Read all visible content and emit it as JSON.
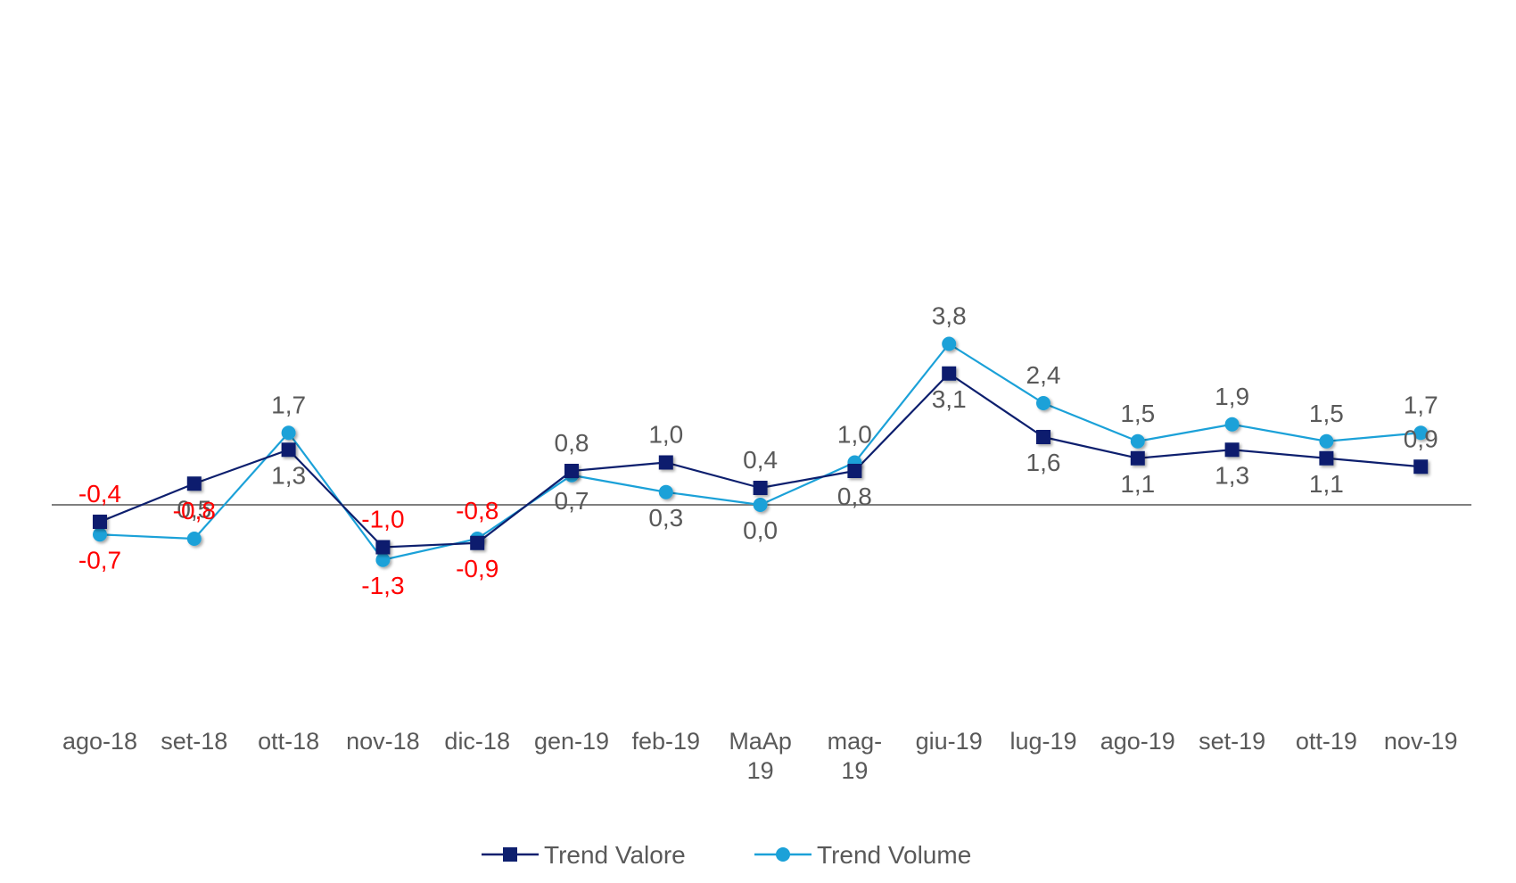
{
  "chart_data": {
    "type": "line",
    "title": "",
    "xlabel": "",
    "ylabel": "",
    "ylim": [
      -2.5,
      4.5
    ],
    "grid": false,
    "zero_line": true,
    "legend_position": "bottom",
    "categories": [
      [
        "ago-18"
      ],
      [
        "set-18"
      ],
      [
        "ott-18"
      ],
      [
        "nov-18"
      ],
      [
        "dic-18"
      ],
      [
        "gen-19"
      ],
      [
        "feb-19"
      ],
      [
        "MaAp",
        "19"
      ],
      [
        "mag-",
        "19"
      ],
      [
        "giu-19"
      ],
      [
        "lug-19"
      ],
      [
        "ago-19"
      ],
      [
        "set-19"
      ],
      [
        "ott-19"
      ],
      [
        "nov-19"
      ]
    ],
    "series": [
      {
        "name": "Trend Valore",
        "color": "#0d1f6e",
        "marker": "square",
        "values": [
          -0.4,
          0.5,
          1.3,
          -1.0,
          -0.9,
          0.8,
          1.0,
          0.4,
          0.8,
          3.1,
          1.6,
          1.1,
          1.3,
          1.1,
          0.9
        ],
        "labels": [
          "-0,4",
          "0,5",
          "1,3",
          "-1,0",
          "-0,9",
          "0,8",
          "1,0",
          "0,4",
          "0,8",
          "3,1",
          "1,6",
          "1,1",
          "1,3",
          "1,1",
          "0,9"
        ],
        "label_pos": [
          "above",
          "below",
          "below",
          "above",
          "below",
          "above",
          "above",
          "above",
          "below",
          "below",
          "below",
          "below",
          "below",
          "below",
          "above"
        ]
      },
      {
        "name": "Trend Volume",
        "color": "#1ba1d8",
        "marker": "circle",
        "values": [
          -0.7,
          -0.8,
          1.7,
          -1.3,
          -0.8,
          0.7,
          0.3,
          0.0,
          1.0,
          3.8,
          2.4,
          1.5,
          1.9,
          1.5,
          1.7
        ],
        "labels": [
          "-0,7",
          "-0,8",
          "1,7",
          "-1,3",
          "-0,8",
          "0,7",
          "0,3",
          "0,0",
          "1,0",
          "3,8",
          "2,4",
          "1,5",
          "1,9",
          "1,5",
          "1,7"
        ],
        "label_pos": [
          "below",
          "above",
          "above",
          "below",
          "above",
          "below",
          "below",
          "below",
          "above",
          "above",
          "above",
          "above",
          "above",
          "above",
          "above"
        ]
      }
    ]
  }
}
